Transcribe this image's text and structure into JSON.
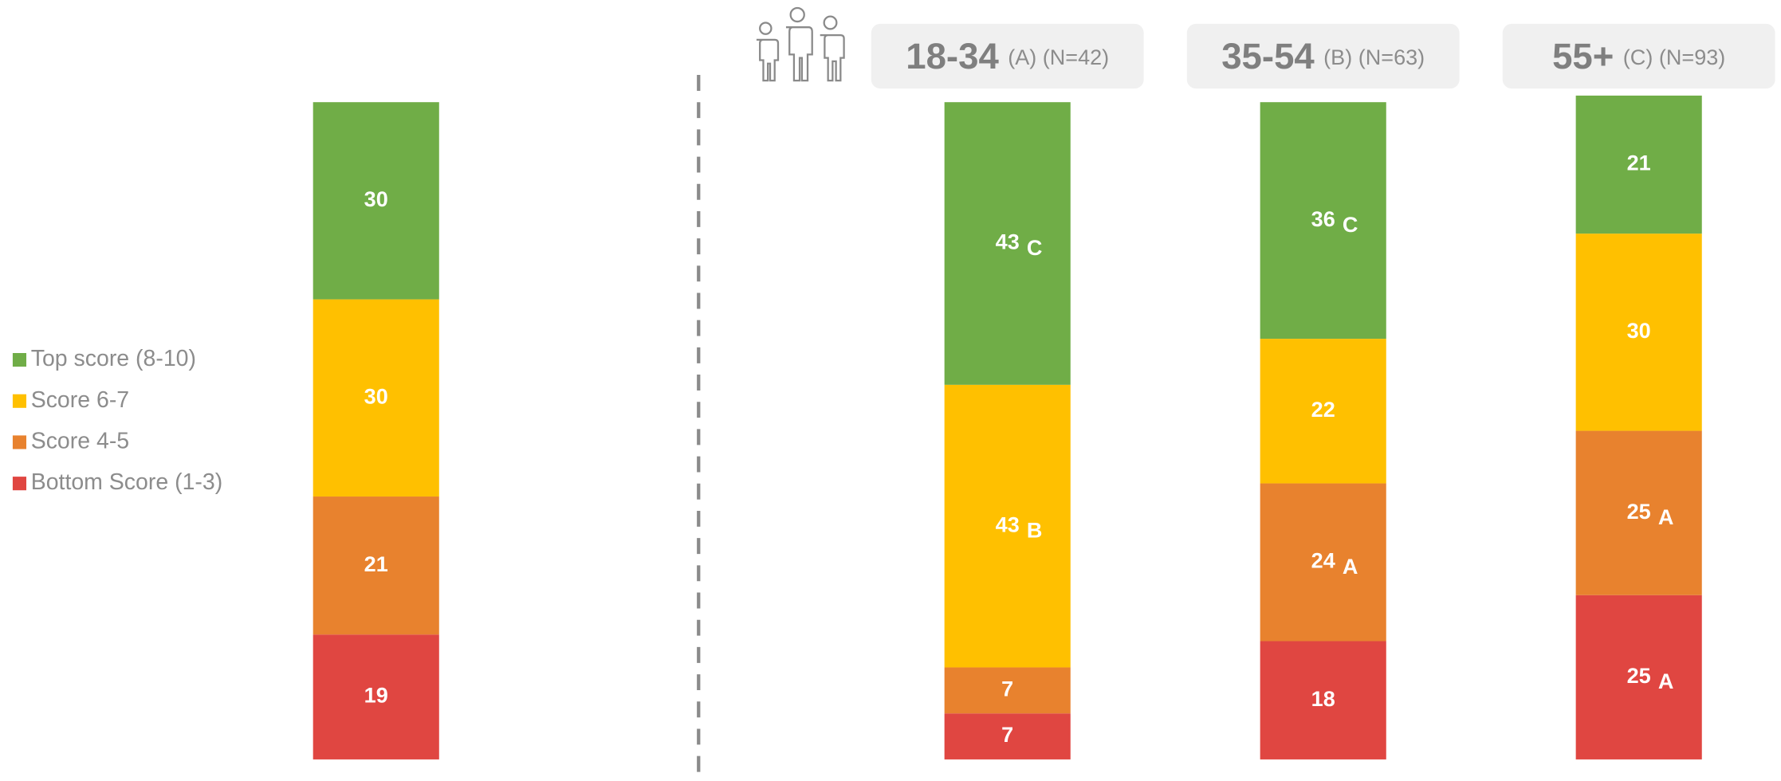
{
  "chart_data": {
    "type": "stacked_bar",
    "categories": [
      null,
      "18-34",
      "35-54",
      "55+"
    ],
    "category_notes": [
      null,
      "(A) (N=42)",
      "(B) (N=63)",
      "(C) (N=93)"
    ],
    "ylim": [
      0,
      100
    ],
    "series": [
      {
        "name": "Top score (8-10)",
        "color": "#70ad47",
        "values": [
          30,
          43,
          36,
          21
        ],
        "sig": [
          null,
          "C",
          "C",
          null
        ]
      },
      {
        "name": "Score 6-7",
        "color": "#ffc000",
        "values": [
          30,
          43,
          22,
          30
        ],
        "sig": [
          null,
          "B",
          null,
          null
        ]
      },
      {
        "name": "Score 4-5",
        "color": "#e8822e",
        "values": [
          21,
          7,
          24,
          25
        ],
        "sig": [
          null,
          null,
          "A",
          "A"
        ]
      },
      {
        "name": "Bottom Score (1-3)",
        "color": "#e04641",
        "values": [
          19,
          7,
          18,
          25
        ],
        "sig": [
          null,
          null,
          null,
          "A"
        ]
      }
    ]
  }
}
